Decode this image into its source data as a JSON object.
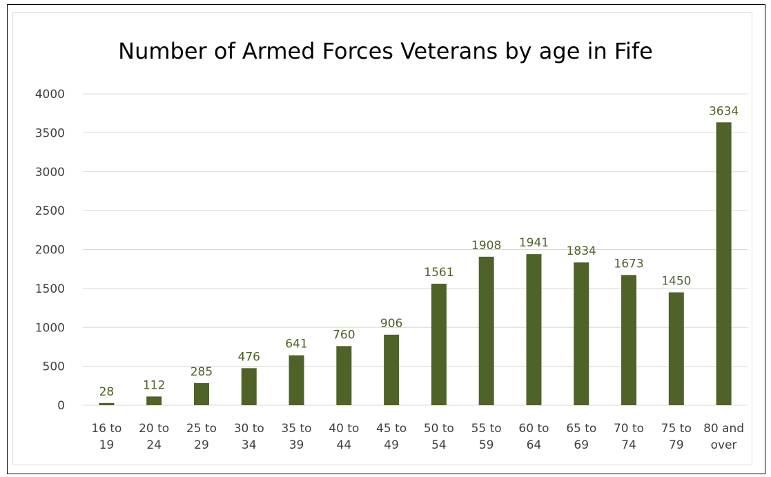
{
  "chart_data": {
    "type": "bar",
    "title": "Number of Armed Forces Veterans by age in Fife",
    "xlabel": "",
    "ylabel": "",
    "categories": [
      [
        "16 to",
        "19"
      ],
      [
        "20 to",
        "24"
      ],
      [
        "25 to",
        "29"
      ],
      [
        "30 to",
        "34"
      ],
      [
        "35 to",
        "39"
      ],
      [
        "40 to",
        "44"
      ],
      [
        "45 to",
        "49"
      ],
      [
        "50 to",
        "54"
      ],
      [
        "55 to",
        "59"
      ],
      [
        "60 to",
        "64"
      ],
      [
        "65 to",
        "69"
      ],
      [
        "70 to",
        "74"
      ],
      [
        "75 to",
        "79"
      ],
      [
        "80 and",
        "over"
      ]
    ],
    "values": [
      28,
      112,
      285,
      476,
      641,
      760,
      906,
      1561,
      1908,
      1941,
      1834,
      1673,
      1450,
      3634
    ],
    "y_ticks": [
      "0",
      "500",
      "1000",
      "1500",
      "2000",
      "2500",
      "3000",
      "3500",
      "4000"
    ],
    "ylim": [
      0,
      4000
    ],
    "grid": true,
    "legend": "none",
    "colors": {
      "bar": "#4f6228",
      "data_label": "#4f6228",
      "gridline": "#d9d9d9",
      "axis_text": "#404040"
    }
  }
}
